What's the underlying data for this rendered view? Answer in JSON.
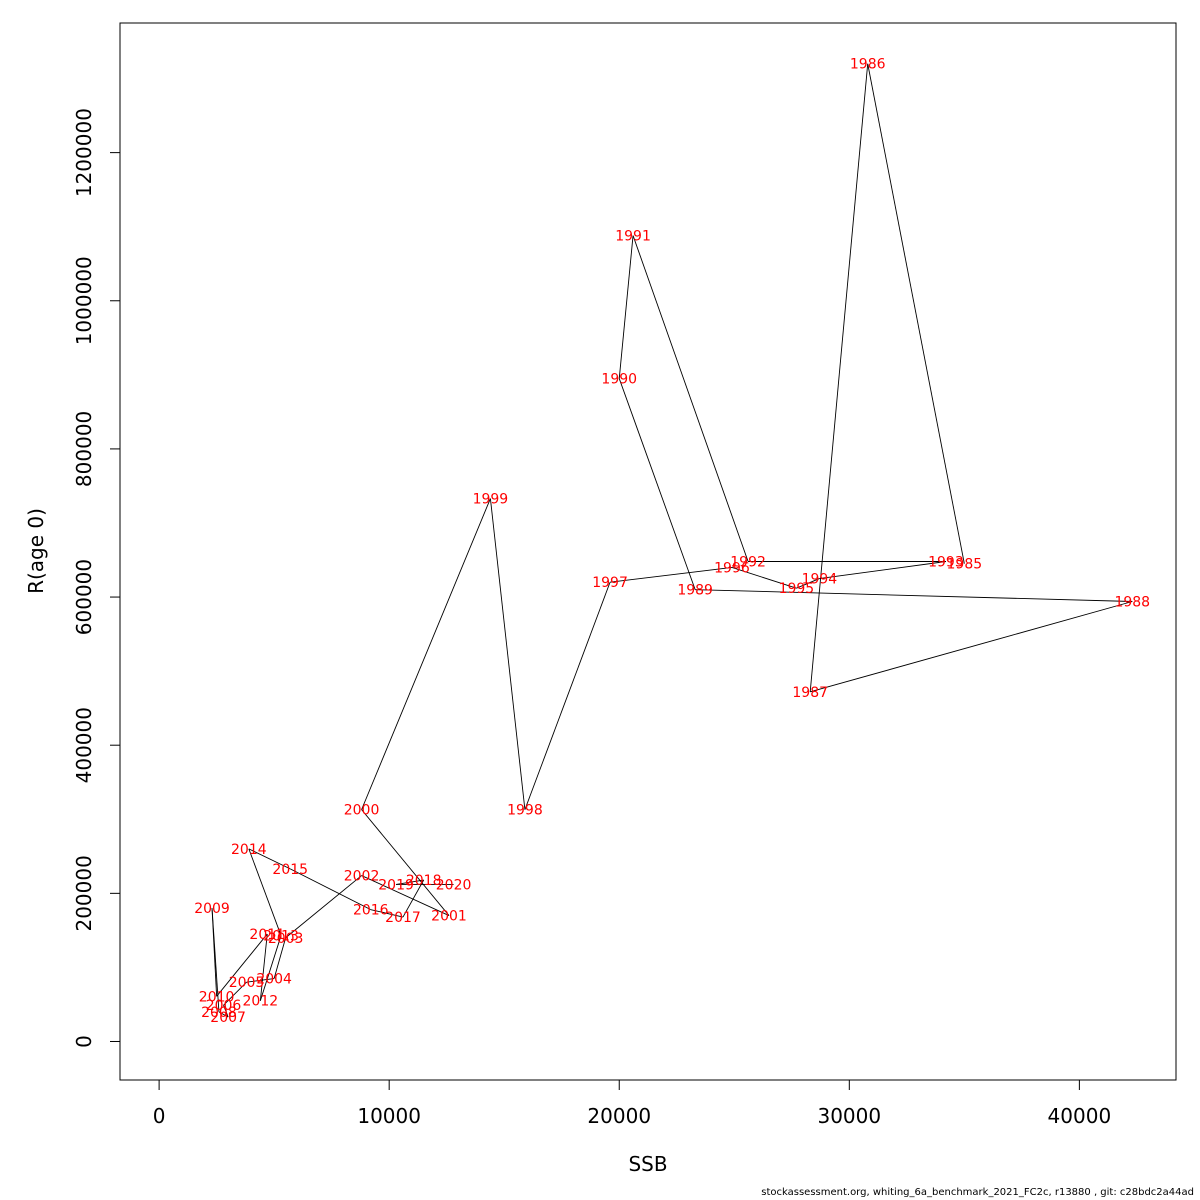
{
  "chart_data": {
    "type": "line",
    "xlabel": "SSB",
    "ylabel": "R(age 0)",
    "xlim": [
      -1700,
      44200
    ],
    "ylim": [
      -52000,
      1375000
    ],
    "x_ticks": [
      0,
      10000,
      20000,
      30000,
      40000
    ],
    "x_tick_labels": [
      "0",
      "10000",
      "20000",
      "30000",
      "40000"
    ],
    "y_ticks": [
      0,
      200000,
      400000,
      600000,
      800000,
      1000000,
      1200000
    ],
    "y_tick_labels": [
      "0",
      "200000",
      "400000",
      "600000",
      "800000",
      "1000000",
      "1200000"
    ],
    "grid": false,
    "line_color": "#000000",
    "label_color": "#ff0000",
    "points": [
      {
        "label": "1985",
        "x": 35000,
        "y": 645000
      },
      {
        "label": "1986",
        "x": 30800,
        "y": 1320000
      },
      {
        "label": "1987",
        "x": 28300,
        "y": 472000
      },
      {
        "label": "1988",
        "x": 42300,
        "y": 594000
      },
      {
        "label": "1989",
        "x": 23300,
        "y": 610000
      },
      {
        "label": "1990",
        "x": 20000,
        "y": 895000
      },
      {
        "label": "1991",
        "x": 20600,
        "y": 1088000
      },
      {
        "label": "1992",
        "x": 25600,
        "y": 648000
      },
      {
        "label": "1993",
        "x": 34200,
        "y": 648000
      },
      {
        "label": "1994",
        "x": 28700,
        "y": 625000
      },
      {
        "label": "1995",
        "x": 27700,
        "y": 612000
      },
      {
        "label": "1996",
        "x": 24900,
        "y": 640000
      },
      {
        "label": "1997",
        "x": 19600,
        "y": 620000
      },
      {
        "label": "1998",
        "x": 15900,
        "y": 313000
      },
      {
        "label": "1999",
        "x": 14400,
        "y": 733000
      },
      {
        "label": "2000",
        "x": 8800,
        "y": 313000
      },
      {
        "label": "2001",
        "x": 12600,
        "y": 170000
      },
      {
        "label": "2002",
        "x": 8800,
        "y": 224000
      },
      {
        "label": "2003",
        "x": 5500,
        "y": 140000
      },
      {
        "label": "2004",
        "x": 5000,
        "y": 85000
      },
      {
        "label": "2005",
        "x": 3800,
        "y": 80000
      },
      {
        "label": "2006",
        "x": 2800,
        "y": 49000
      },
      {
        "label": "2007",
        "x": 3000,
        "y": 33000
      },
      {
        "label": "2008",
        "x": 2600,
        "y": 40000
      },
      {
        "label": "2009",
        "x": 2300,
        "y": 180000
      },
      {
        "label": "2010",
        "x": 2500,
        "y": 61000
      },
      {
        "label": "2011",
        "x": 4700,
        "y": 145000
      },
      {
        "label": "2012",
        "x": 4400,
        "y": 55000
      },
      {
        "label": "2013",
        "x": 5300,
        "y": 143000
      },
      {
        "label": "2014",
        "x": 3900,
        "y": 260000
      },
      {
        "label": "2015",
        "x": 5700,
        "y": 233000
      },
      {
        "label": "2016",
        "x": 9200,
        "y": 178000
      },
      {
        "label": "2017",
        "x": 10600,
        "y": 168000
      },
      {
        "label": "2018",
        "x": 11500,
        "y": 218000
      },
      {
        "label": "2019",
        "x": 10300,
        "y": 212000
      },
      {
        "label": "2020",
        "x": 12800,
        "y": 212000
      }
    ]
  },
  "caption": "stockassessment.org, whiting_6a_benchmark_2021_FC2c, r13880 , git: c28bdc2a44ad"
}
